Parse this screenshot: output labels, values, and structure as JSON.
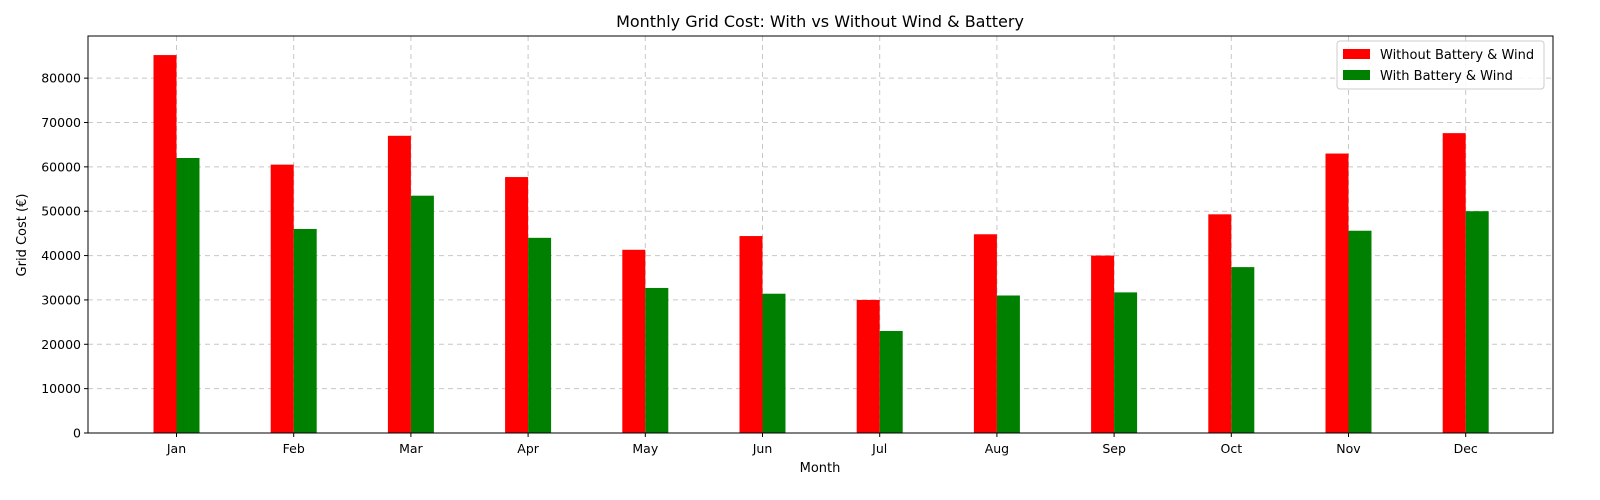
{
  "chart_data": {
    "type": "bar",
    "title": "Monthly Grid Cost: With vs Without Wind & Battery",
    "xlabel": "Month",
    "ylabel": "Grid Cost (€)",
    "categories": [
      "Jan",
      "Feb",
      "Mar",
      "Apr",
      "May",
      "Jun",
      "Jul",
      "Aug",
      "Sep",
      "Oct",
      "Nov",
      "Dec"
    ],
    "series": [
      {
        "name": "Without Battery & Wind",
        "color": "#ff0000",
        "values": [
          85200,
          60500,
          67000,
          57700,
          41300,
          44400,
          30000,
          44800,
          40000,
          49300,
          63000,
          67600
        ]
      },
      {
        "name": "With Battery & Wind",
        "color": "#008000",
        "values": [
          62000,
          46000,
          53500,
          44000,
          32700,
          31400,
          23000,
          31000,
          31700,
          37400,
          45600,
          50000
        ]
      }
    ],
    "ylim": [
      0,
      89500
    ],
    "yticks": [
      0,
      10000,
      20000,
      30000,
      40000,
      50000,
      60000,
      70000,
      80000
    ],
    "grid": true,
    "legend_position": "top-right"
  }
}
